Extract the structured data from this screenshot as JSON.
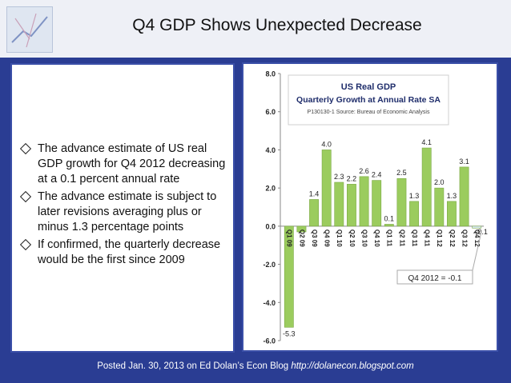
{
  "slide": {
    "title": "Q4 GDP Shows Unexpected Decrease",
    "bullets": [
      "The advance estimate of US real GDP growth for Q4 2012 decreasing at a 0.1 percent annual rate",
      "The advance estimate is subject to later revisions averaging plus or minus 1.3 percentage points",
      "If confirmed, the quarterly decrease would be the first since 2009"
    ],
    "footer_text": "Posted Jan. 30, 2013 on Ed Dolan’s Econ Blog ",
    "footer_url": "http://dolanecon.blogspot.com"
  },
  "chart_data": {
    "type": "bar",
    "title": "US Real GDP",
    "subtitle": "Quarterly Growth at Annual Rate SA",
    "source": "P130130-1 Source: Bureau of Economic Analysis",
    "annotation": "Q4 2012 = -0.1",
    "categories": [
      "Q1 09",
      "Q2 09",
      "Q3 09",
      "Q4 09",
      "Q1 10",
      "Q2 10",
      "Q3 10",
      "Q4 10",
      "Q1 11",
      "Q2 11",
      "Q3 11",
      "Q4 11",
      "Q1 12",
      "Q2 12",
      "Q3 12",
      "Q4 12"
    ],
    "values": [
      -5.3,
      -0.3,
      1.4,
      4.0,
      2.3,
      2.2,
      2.6,
      2.4,
      0.1,
      2.5,
      1.3,
      4.1,
      2.0,
      1.3,
      3.1,
      -0.1
    ],
    "value_labels": [
      "-5.3",
      "",
      "1.4",
      "4.0",
      "2.3",
      "2.2",
      "2.6",
      "2.4",
      "0.1",
      "2.5",
      "1.3",
      "4.1",
      "2.0",
      "1.3",
      "3.1",
      "-0.1"
    ],
    "ylim": [
      -6,
      8
    ],
    "yticks": [
      "-6.0",
      "-4.0",
      "-2.0",
      "0.0",
      "2.0",
      "4.0",
      "6.0",
      "8.0"
    ],
    "ytick_values": [
      -6,
      -4,
      -2,
      0,
      2,
      4,
      6,
      8
    ],
    "grid": false,
    "colors": {
      "bar": "#9bcc5e",
      "bar_edge": "#7aa844",
      "last_bar": "#d8e9f5"
    }
  }
}
